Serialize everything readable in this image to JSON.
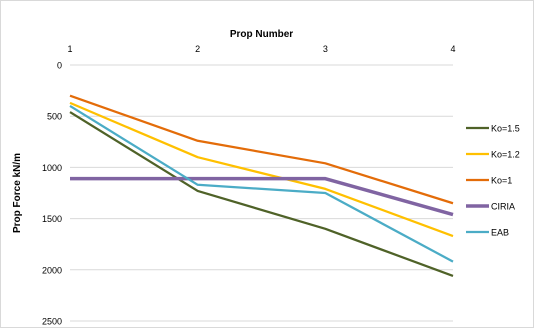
{
  "chart_data": {
    "type": "line",
    "title": "",
    "xlabel": "Prop Number",
    "ylabel": "Prop Force kN/m",
    "x": [
      1,
      2,
      3,
      4
    ],
    "x_tick_labels": [
      "1",
      "2",
      "3",
      "4"
    ],
    "x_axis_position": "top",
    "ylim": [
      2500,
      0
    ],
    "y_inverted": true,
    "y_ticks": [
      0,
      500,
      1000,
      1500,
      2000,
      2500
    ],
    "y_tick_labels": [
      "0",
      "500",
      "1000",
      "1500",
      "2000",
      "2500"
    ],
    "grid": "horizontal",
    "legend_position": "right",
    "series": [
      {
        "name": "Ko=1.5",
        "color": "#4f6228",
        "values": [
          460,
          1230,
          1600,
          2060
        ]
      },
      {
        "name": "Ko=1.2",
        "color": "#ffc000",
        "values": [
          370,
          900,
          1210,
          1670
        ]
      },
      {
        "name": "Ko=1",
        "color": "#e36c09",
        "values": [
          300,
          740,
          960,
          1350
        ]
      },
      {
        "name": "CIRIA",
        "color": "#8064a2",
        "values": [
          1110,
          1110,
          1110,
          1460
        ]
      },
      {
        "name": "EAB",
        "color": "#4bacc6",
        "values": [
          400,
          1170,
          1250,
          1920
        ]
      }
    ]
  }
}
